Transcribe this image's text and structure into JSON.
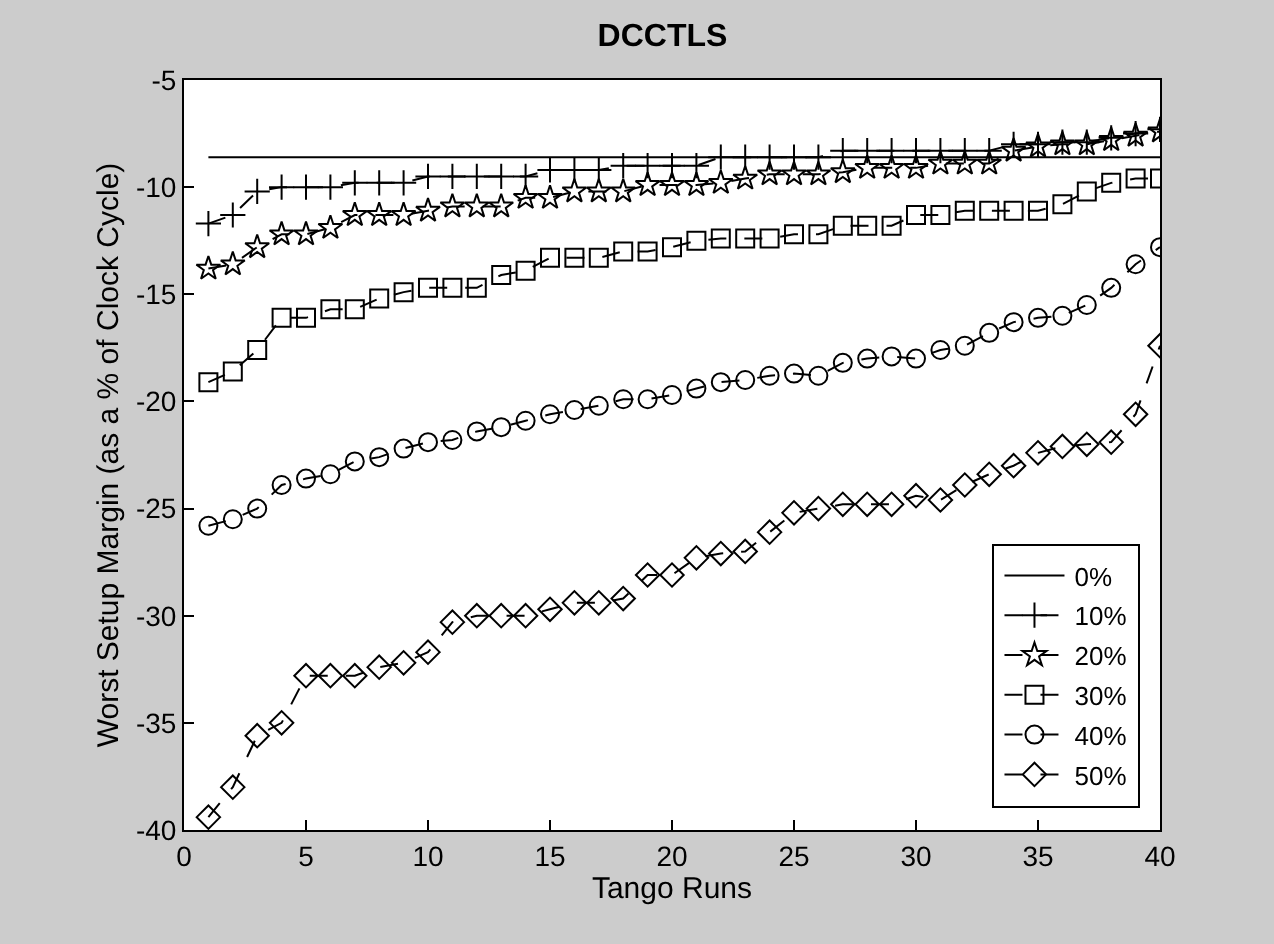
{
  "chart_data": {
    "type": "line",
    "title": "DCCTLS",
    "xlabel": "Tango Runs",
    "ylabel": "Worst Setup Margin (as a % of Clock Cycle)",
    "xlim": [
      0,
      40
    ],
    "xticks": [
      0,
      5,
      10,
      15,
      20,
      25,
      30,
      35,
      40
    ],
    "ylim": [
      -40,
      -5
    ],
    "yticks": [
      -40,
      -35,
      -30,
      -25,
      -20,
      -15,
      -10,
      -5
    ],
    "legend": "bottom right",
    "series": [
      {
        "name": "0%",
        "color": "#000000",
        "marker": "none",
        "line_style": "solid",
        "x": [
          1,
          40
        ],
        "values": [
          -8.6,
          -8.6
        ]
      },
      {
        "name": "10%",
        "color": "#000000",
        "marker": "cross",
        "line_style": "dashed",
        "x": [
          1,
          2,
          3,
          4,
          5,
          6,
          7,
          8,
          9,
          10,
          11,
          12,
          13,
          14,
          15,
          16,
          17,
          18,
          19,
          20,
          21,
          22,
          23,
          24,
          25,
          26,
          27,
          28,
          29,
          30,
          31,
          32,
          33,
          34,
          35,
          36,
          37,
          38,
          39,
          40
        ],
        "values": [
          -11.7,
          -11.3,
          -10.2,
          -10.0,
          -10.0,
          -10.0,
          -9.8,
          -9.8,
          -9.8,
          -9.5,
          -9.5,
          -9.5,
          -9.5,
          -9.5,
          -9.2,
          -9.2,
          -9.2,
          -9.0,
          -9.0,
          -9.0,
          -9.0,
          -8.6,
          -8.6,
          -8.6,
          -8.6,
          -8.6,
          -8.3,
          -8.3,
          -8.3,
          -8.3,
          -8.3,
          -8.3,
          -8.3,
          -8.0,
          -8.0,
          -7.9,
          -7.9,
          -7.7,
          -7.5,
          -7.3
        ]
      },
      {
        "name": "20%",
        "color": "#000000",
        "marker": "star",
        "line_style": "dashed",
        "x": [
          1,
          2,
          3,
          4,
          5,
          6,
          7,
          8,
          9,
          10,
          11,
          12,
          13,
          14,
          15,
          16,
          17,
          18,
          19,
          20,
          21,
          22,
          23,
          24,
          25,
          26,
          27,
          28,
          29,
          30,
          31,
          32,
          33,
          34,
          35,
          36,
          37,
          38,
          39,
          40
        ],
        "values": [
          -13.8,
          -13.6,
          -12.8,
          -12.2,
          -12.2,
          -11.9,
          -11.3,
          -11.3,
          -11.3,
          -11.1,
          -10.9,
          -10.9,
          -10.9,
          -10.5,
          -10.5,
          -10.2,
          -10.2,
          -10.2,
          -9.9,
          -9.9,
          -9.9,
          -9.8,
          -9.6,
          -9.4,
          -9.4,
          -9.4,
          -9.3,
          -9.1,
          -9.1,
          -9.1,
          -8.9,
          -8.9,
          -8.9,
          -8.3,
          -8.1,
          -8.0,
          -8.0,
          -7.8,
          -7.6,
          -7.4
        ]
      },
      {
        "name": "30%",
        "color": "#000000",
        "marker": "square",
        "line_style": "dashed",
        "x": [
          1,
          2,
          3,
          4,
          5,
          6,
          7,
          8,
          9,
          10,
          11,
          12,
          13,
          14,
          15,
          16,
          17,
          18,
          19,
          20,
          21,
          22,
          23,
          24,
          25,
          26,
          27,
          28,
          29,
          30,
          31,
          32,
          33,
          34,
          35,
          36,
          37,
          38,
          39,
          40
        ],
        "values": [
          -19.1,
          -18.6,
          -17.6,
          -16.1,
          -16.1,
          -15.7,
          -15.7,
          -15.2,
          -14.9,
          -14.7,
          -14.7,
          -14.7,
          -14.1,
          -13.9,
          -13.3,
          -13.3,
          -13.3,
          -13.0,
          -13.0,
          -12.8,
          -12.5,
          -12.4,
          -12.4,
          -12.4,
          -12.2,
          -12.2,
          -11.8,
          -11.8,
          -11.8,
          -11.3,
          -11.3,
          -11.1,
          -11.1,
          -11.1,
          -11.1,
          -10.8,
          -10.2,
          -9.8,
          -9.6,
          -9.6
        ]
      },
      {
        "name": "40%",
        "color": "#000000",
        "marker": "circle",
        "line_style": "dashed",
        "x": [
          1,
          2,
          3,
          4,
          5,
          6,
          7,
          8,
          9,
          10,
          11,
          12,
          13,
          14,
          15,
          16,
          17,
          18,
          19,
          20,
          21,
          22,
          23,
          24,
          25,
          26,
          27,
          28,
          29,
          30,
          31,
          32,
          33,
          34,
          35,
          36,
          37,
          38,
          39,
          40
        ],
        "values": [
          -25.8,
          -25.5,
          -25.0,
          -23.9,
          -23.6,
          -23.4,
          -22.8,
          -22.6,
          -22.2,
          -21.9,
          -21.8,
          -21.4,
          -21.2,
          -20.9,
          -20.6,
          -20.4,
          -20.2,
          -19.9,
          -19.9,
          -19.7,
          -19.4,
          -19.1,
          -19.0,
          -18.8,
          -18.7,
          -18.8,
          -18.2,
          -18.0,
          -17.9,
          -18.0,
          -17.6,
          -17.4,
          -16.8,
          -16.3,
          -16.1,
          -16.0,
          -15.5,
          -14.7,
          -13.6,
          -12.8
        ]
      },
      {
        "name": "50%",
        "color": "#000000",
        "marker": "diamond",
        "line_style": "dashed",
        "x": [
          1,
          2,
          3,
          4,
          5,
          6,
          7,
          8,
          9,
          10,
          11,
          12,
          13,
          14,
          15,
          16,
          17,
          18,
          19,
          20,
          21,
          22,
          23,
          24,
          25,
          26,
          27,
          28,
          29,
          30,
          31,
          32,
          33,
          34,
          35,
          36,
          37,
          38,
          39,
          40
        ],
        "values": [
          -39.4,
          -38.0,
          -35.6,
          -35.0,
          -32.8,
          -32.8,
          -32.8,
          -32.4,
          -32.2,
          -31.7,
          -30.3,
          -30.0,
          -30.0,
          -30.0,
          -29.7,
          -29.4,
          -29.4,
          -29.2,
          -28.1,
          -28.1,
          -27.3,
          -27.1,
          -27.0,
          -26.1,
          -25.2,
          -25.0,
          -24.8,
          -24.8,
          -24.8,
          -24.4,
          -24.6,
          -23.9,
          -23.4,
          -23.0,
          -22.4,
          -22.1,
          -22.0,
          -21.9,
          -20.6,
          -17.4
        ]
      }
    ]
  }
}
